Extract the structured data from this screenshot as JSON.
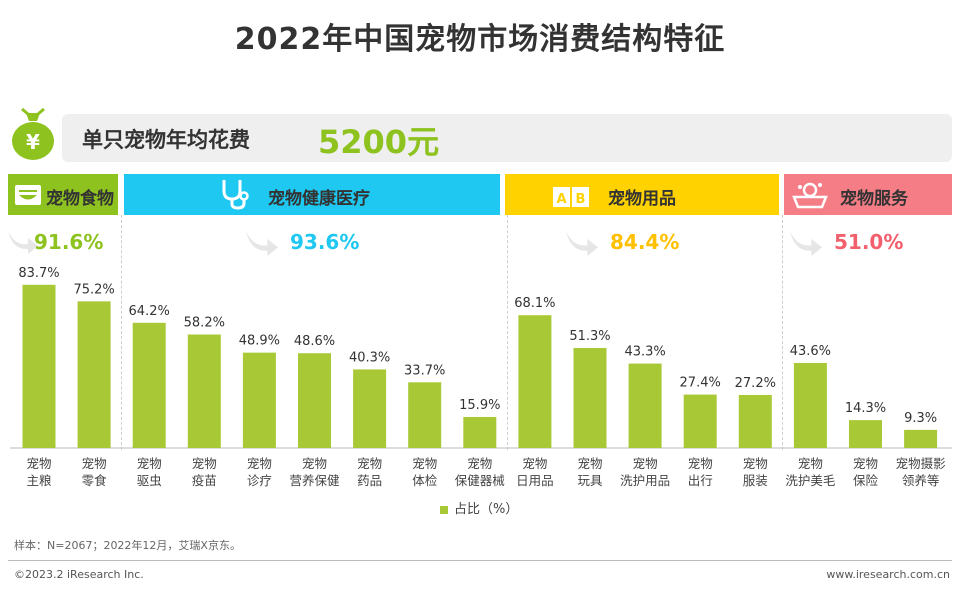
{
  "title": "2022年中国宠物市场消费结构特征",
  "spend": {
    "label": "单只宠物年均花费",
    "value": "5200元"
  },
  "categories": [
    {
      "name": "宠物食物",
      "total": "91.6%",
      "color": "#8dc21f",
      "total_color": "#8dc21f",
      "icon": "food-bowl-icon"
    },
    {
      "name": "宠物健康医疗",
      "total": "93.6%",
      "color": "#1ec8f0",
      "total_color": "#1ec8f0",
      "icon": "stethoscope-icon"
    },
    {
      "name": "宠物用品",
      "total": "84.4%",
      "color": "#ffd200",
      "total_color": "#ffc000",
      "icon": "toy-blocks-icon"
    },
    {
      "name": "宠物服务",
      "total": "51.0%",
      "color": "#f47d86",
      "total_color": "#f1606c",
      "icon": "pet-bath-icon"
    }
  ],
  "legend": "占比（%）",
  "note": "样本：N=2067；2022年12月，艾瑞X京东。",
  "copyright": "©2023.2 iResearch Inc.",
  "website": "www.iresearch.com.cn",
  "chart_data": {
    "type": "bar",
    "categories": [
      "宠物\n主粮",
      "宠物\n零食",
      "宠物\n驱虫",
      "宠物\n疫苗",
      "宠物\n诊疗",
      "宠物\n营养保健",
      "宠物\n药品",
      "宠物\n体检",
      "宠物\n保健器械",
      "宠物\n日用品",
      "宠物\n玩具",
      "宠物\n洗护用品",
      "宠物\n出行",
      "宠物\n服装",
      "宠物\n洗护美毛",
      "宠物\n保险",
      "宠物摄影\n领养等"
    ],
    "series": [
      {
        "name": "占比（%）",
        "values": [
          83.7,
          75.2,
          64.2,
          58.2,
          48.9,
          48.6,
          40.3,
          33.7,
          15.9,
          68.1,
          51.3,
          43.3,
          27.4,
          27.2,
          43.6,
          14.3,
          9.3
        ],
        "color": "#a8c935"
      }
    ],
    "value_labels": [
      "83.7%",
      "75.2%",
      "64.2%",
      "58.2%",
      "48.9%",
      "48.6%",
      "40.3%",
      "33.7%",
      "15.9%",
      "68.1%",
      "51.3%",
      "43.3%",
      "27.4%",
      "27.2%",
      "43.6%",
      "14.3%",
      "9.3%"
    ],
    "ylim": [
      0,
      100
    ]
  }
}
